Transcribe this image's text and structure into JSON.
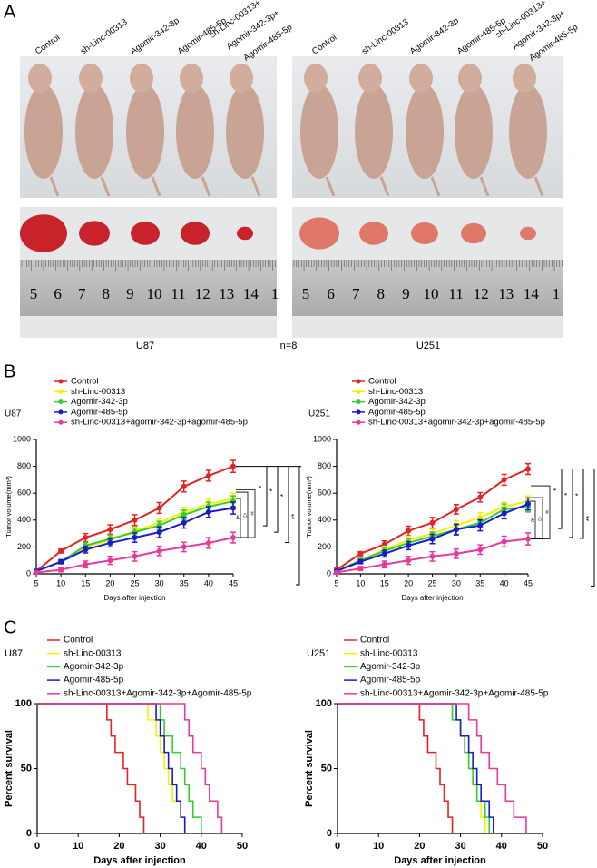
{
  "panel_a": {
    "label": "A",
    "columns": [
      "Control",
      "sh-Linc-00313",
      "Agomir-342-3p",
      "Agomir-485-5p",
      [
        "sh-Linc-00313+",
        "Agomir-342-3p+",
        "Agomir-485-5p"
      ]
    ],
    "cell_lines": [
      "U87",
      "U251"
    ],
    "n_label": "n=8",
    "ruler_numbers": [
      "5",
      "6",
      "7",
      "8",
      "9",
      "10",
      "11",
      "12",
      "13",
      "14",
      "1"
    ]
  },
  "panel_b_label": "B",
  "panel_c_label": "C",
  "chart_data": [
    {
      "type": "line",
      "title": "U87",
      "x_label": "Days after injection",
      "y_label": "Tumor volume(mm³)",
      "x": [
        5,
        10,
        15,
        20,
        25,
        30,
        35,
        40,
        45
      ],
      "xlim": [
        5,
        45
      ],
      "xticks": [
        5,
        10,
        15,
        20,
        25,
        30,
        35,
        40,
        45
      ],
      "ylim": [
        0,
        1000
      ],
      "yticks": [
        0,
        200,
        400,
        600,
        800,
        1000
      ],
      "series": [
        {
          "name": "Control",
          "color": "#e32222",
          "values": [
            20,
            170,
            270,
            330,
            400,
            490,
            650,
            730,
            800
          ],
          "errors": [
            10,
            15,
            30,
            35,
            40,
            40,
            40,
            40,
            45
          ]
        },
        {
          "name": "sh-Linc-00313",
          "color": "#f2f200",
          "values": [
            20,
            90,
            200,
            250,
            320,
            380,
            460,
            520,
            560
          ],
          "errors": [
            10,
            15,
            25,
            30,
            30,
            30,
            35,
            35,
            40
          ]
        },
        {
          "name": "Agomir-342-3p",
          "color": "#33cc33",
          "values": [
            20,
            90,
            210,
            260,
            310,
            360,
            440,
            500,
            540
          ],
          "errors": [
            10,
            15,
            25,
            30,
            30,
            30,
            35,
            35,
            40
          ]
        },
        {
          "name": "Agomir-485-5p",
          "color": "#1a1acc",
          "values": [
            20,
            90,
            180,
            230,
            270,
            310,
            380,
            460,
            490
          ],
          "errors": [
            10,
            15,
            25,
            30,
            35,
            40,
            40,
            40,
            45
          ]
        },
        {
          "name": "sh-Linc-00313+agomir-342-3p+agomir-485-5p",
          "color": "#e6399b",
          "values": [
            10,
            30,
            70,
            100,
            130,
            170,
            200,
            230,
            270
          ],
          "errors": [
            10,
            15,
            25,
            30,
            35,
            35,
            35,
            40,
            40
          ]
        }
      ],
      "annotations": {
        "stars": [
          "*",
          "*",
          "*",
          "**"
        ],
        "marks": [
          "&",
          "△",
          "#"
        ]
      }
    },
    {
      "type": "line",
      "title": "U251",
      "x_label": "Days after injection",
      "y_label": "Tumor volume(mm³)",
      "x": [
        5,
        10,
        15,
        20,
        25,
        30,
        35,
        40,
        45
      ],
      "xlim": [
        5,
        45
      ],
      "xticks": [
        5,
        10,
        15,
        20,
        25,
        30,
        35,
        40,
        45
      ],
      "ylim": [
        0,
        1000
      ],
      "yticks": [
        0,
        200,
        400,
        600,
        800,
        1000
      ],
      "series": [
        {
          "name": "Control",
          "color": "#e32222",
          "values": [
            30,
            150,
            220,
            320,
            380,
            480,
            570,
            700,
            780
          ],
          "errors": [
            10,
            15,
            25,
            35,
            40,
            35,
            35,
            40,
            40
          ]
        },
        {
          "name": "sh-Linc-00313",
          "color": "#f2f200",
          "values": [
            20,
            100,
            180,
            250,
            300,
            360,
            420,
            500,
            540
          ],
          "errors": [
            10,
            15,
            25,
            30,
            30,
            35,
            35,
            35,
            40
          ]
        },
        {
          "name": "Agomir-342-3p",
          "color": "#33cc33",
          "values": [
            20,
            100,
            170,
            230,
            280,
            330,
            380,
            480,
            500
          ],
          "errors": [
            10,
            15,
            25,
            30,
            30,
            35,
            35,
            40,
            40
          ]
        },
        {
          "name": "Agomir-485-5p",
          "color": "#1a1acc",
          "values": [
            20,
            90,
            150,
            210,
            260,
            330,
            360,
            450,
            520
          ],
          "errors": [
            10,
            15,
            25,
            30,
            35,
            40,
            40,
            40,
            45
          ]
        },
        {
          "name": "sh-Linc-00313+agomir-342-3p+agomir-485-5p",
          "color": "#e6399b",
          "values": [
            10,
            40,
            70,
            100,
            130,
            150,
            180,
            240,
            260
          ],
          "errors": [
            10,
            15,
            25,
            30,
            35,
            35,
            35,
            40,
            45
          ]
        }
      ],
      "annotations": {
        "stars": [
          "*",
          "*",
          "*",
          "**"
        ],
        "marks": [
          "&",
          "△",
          "#"
        ]
      }
    },
    {
      "type": "step",
      "title": "U87",
      "x_label": "Days after injection",
      "y_label": "Percent survival",
      "xlim": [
        0,
        50
      ],
      "xticks": [
        0,
        10,
        20,
        30,
        40,
        50
      ],
      "ylim": [
        0,
        100
      ],
      "yticks": [
        0,
        50,
        100
      ],
      "series": [
        {
          "name": "Control",
          "color": "#e32222",
          "x": [
            0,
            17,
            18,
            19,
            21,
            22,
            24,
            25,
            26
          ],
          "values": [
            100,
            87.5,
            75,
            62.5,
            50,
            37.5,
            25,
            12.5,
            0
          ]
        },
        {
          "name": "sh-Linc-00313",
          "color": "#f2f200",
          "x": [
            0,
            27,
            29,
            30,
            31,
            32,
            33,
            35,
            36
          ],
          "values": [
            100,
            87.5,
            75,
            62.5,
            50,
            37.5,
            25,
            12.5,
            0
          ]
        },
        {
          "name": "Agomir-342-3p",
          "color": "#33cc33",
          "x": [
            0,
            30,
            31,
            33,
            35,
            36,
            37,
            38,
            40
          ],
          "values": [
            100,
            87.5,
            75,
            62.5,
            50,
            37.5,
            25,
            12.5,
            0
          ]
        },
        {
          "name": "Agomir-485-5p",
          "color": "#1a1acc",
          "x": [
            0,
            29,
            30,
            31,
            32,
            33,
            34,
            35,
            36
          ],
          "values": [
            100,
            87.5,
            75,
            62.5,
            50,
            37.5,
            25,
            12.5,
            0
          ]
        },
        {
          "name": "sh-Linc-00313+Agomir-342-3p+Agomir-485-5p",
          "color": "#e6399b",
          "x": [
            0,
            36,
            37,
            38,
            40,
            41,
            42,
            44,
            45
          ],
          "values": [
            100,
            87.5,
            75,
            62.5,
            50,
            37.5,
            25,
            12.5,
            0
          ]
        }
      ]
    },
    {
      "type": "step",
      "title": "U251",
      "x_label": "Days after injection",
      "y_label": "Percent survival",
      "xlim": [
        0,
        50
      ],
      "xticks": [
        0,
        10,
        20,
        30,
        40,
        50
      ],
      "ylim": [
        0,
        100
      ],
      "yticks": [
        0,
        50,
        100
      ],
      "series": [
        {
          "name": "Control",
          "color": "#e32222",
          "x": [
            0,
            20,
            21,
            22,
            24,
            25,
            26,
            27,
            28
          ],
          "values": [
            100,
            87.5,
            75,
            62.5,
            50,
            37.5,
            25,
            12.5,
            0
          ]
        },
        {
          "name": "sh-Linc-00313",
          "color": "#f2f200",
          "x": [
            0,
            28,
            30,
            31,
            32,
            33,
            34,
            35,
            36
          ],
          "values": [
            100,
            87.5,
            75,
            62.5,
            50,
            37.5,
            25,
            12.5,
            0
          ]
        },
        {
          "name": "Agomir-342-3p",
          "color": "#33cc33",
          "x": [
            0,
            28,
            30,
            31,
            32,
            33,
            34,
            36,
            37
          ],
          "values": [
            100,
            87.5,
            75,
            62.5,
            50,
            37.5,
            25,
            12.5,
            0
          ]
        },
        {
          "name": "Agomir-485-5p",
          "color": "#1a1acc",
          "x": [
            0,
            29,
            30,
            32,
            33,
            34,
            35,
            37,
            38
          ],
          "values": [
            100,
            87.5,
            75,
            62.5,
            50,
            37.5,
            25,
            12.5,
            0
          ]
        },
        {
          "name": "sh-Linc-00313+Agomir-342-3p+Agomir-485-5p",
          "color": "#e6399b",
          "x": [
            0,
            32,
            34,
            35,
            37,
            39,
            41,
            43,
            46
          ],
          "values": [
            100,
            87.5,
            75,
            62.5,
            50,
            37.5,
            25,
            12.5,
            0
          ]
        }
      ]
    }
  ]
}
